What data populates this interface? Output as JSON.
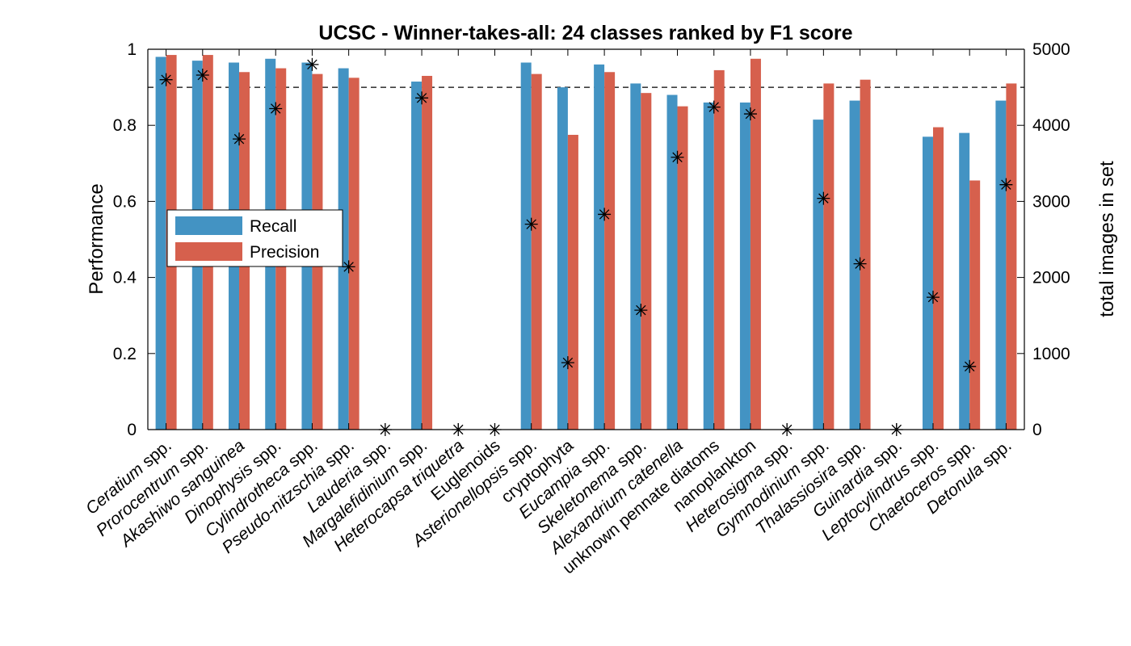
{
  "chart_data": {
    "type": "bar",
    "title": "UCSC - Winner-takes-all: 24 classes ranked by F1 score",
    "ylabel": "Performance",
    "y2label": "total images in set",
    "ylim": [
      0,
      1
    ],
    "y2lim": [
      0,
      5000
    ],
    "yticks": [
      "0",
      "0.2",
      "0.4",
      "0.6",
      "0.8",
      "1"
    ],
    "y2ticks": [
      "0",
      "1000",
      "2000",
      "3000",
      "4000",
      "5000"
    ],
    "reference_line": 0.9,
    "legend_position": "center-left",
    "categories": [
      {
        "label": "Ceratium spp.",
        "italic": "Ceratium",
        "rest": " spp."
      },
      {
        "label": "Prorocentrum spp.",
        "italic": "Prorocentrum",
        "rest": " spp."
      },
      {
        "label": "Akashiwo sanguinea",
        "italic": "Akashiwo sanguinea",
        "rest": ""
      },
      {
        "label": "Dinophysis spp.",
        "italic": "Dinophysis",
        "rest": " spp."
      },
      {
        "label": "Cylindrotheca spp.",
        "italic": "Cylindrotheca",
        "rest": " spp."
      },
      {
        "label": "Pseudo-nitzschia spp.",
        "italic": "Pseudo-nitzschia",
        "rest": " spp."
      },
      {
        "label": "Lauderia spp.",
        "italic": "Lauderia",
        "rest": " spp."
      },
      {
        "label": "Margalefidinium spp.",
        "italic": "Margalefidinium",
        "rest": " spp."
      },
      {
        "label": "Heterocapsa triquetra",
        "italic": "Heterocapsa triquetra",
        "rest": ""
      },
      {
        "label": "Euglenoids",
        "italic": "",
        "rest": "Euglenoids"
      },
      {
        "label": "Asterionellopsis spp.",
        "italic": "Asterionellopsis",
        "rest": " spp."
      },
      {
        "label": "cryptophyta",
        "italic": "",
        "rest": "cryptophyta"
      },
      {
        "label": "Eucampia spp.",
        "italic": "Eucampia",
        "rest": " spp."
      },
      {
        "label": "Skeletonema spp.",
        "italic": "Skeletonema",
        "rest": " spp."
      },
      {
        "label": "Alexandrium catenella",
        "italic": "Alexandrium catenella",
        "rest": ""
      },
      {
        "label": "unknown pennate diatoms",
        "italic": "",
        "rest": "unknown pennate diatoms"
      },
      {
        "label": "nanoplankton",
        "italic": "",
        "rest": "nanoplankton"
      },
      {
        "label": "Heterosigma spp.",
        "italic": "Heterosigma",
        "rest": " spp."
      },
      {
        "label": "Gymnodinium spp.",
        "italic": "Gymnodinium",
        "rest": " spp."
      },
      {
        "label": "Thalassiosira spp.",
        "italic": "Thalassiosira",
        "rest": " spp."
      },
      {
        "label": "Guinardia spp.",
        "italic": "Guinardia",
        "rest": " spp."
      },
      {
        "label": "Leptocylindrus spp.",
        "italic": "Leptocylindrus",
        "rest": " spp."
      },
      {
        "label": "Chaetoceros spp.",
        "italic": "Chaetoceros",
        "rest": " spp."
      },
      {
        "label": "Detonula spp.",
        "italic": "Detonula",
        "rest": " spp."
      }
    ],
    "series": [
      {
        "name": "Recall",
        "color": "#4393C3",
        "values": [
          0.98,
          0.97,
          0.965,
          0.975,
          0.965,
          0.95,
          0,
          0.915,
          0,
          0,
          0.965,
          0.9,
          0.96,
          0.91,
          0.88,
          0.86,
          0.86,
          0,
          0.815,
          0.865,
          0,
          0.77,
          0.78,
          0.865
        ]
      },
      {
        "name": "Precision",
        "color": "#D6604D",
        "values": [
          0.985,
          0.985,
          0.94,
          0.95,
          0.935,
          0.925,
          0,
          0.93,
          0,
          0,
          0.935,
          0.775,
          0.94,
          0.885,
          0.85,
          0.945,
          0.975,
          0,
          0.91,
          0.92,
          0,
          0.795,
          0.655,
          0.91
        ]
      }
    ],
    "total_images": [
      4600,
      4660,
      3820,
      4220,
      4800,
      2140,
      0,
      4360,
      0,
      0,
      2700,
      880,
      2830,
      1570,
      3580,
      4240,
      4150,
      0,
      3040,
      2180,
      0,
      1740,
      830,
      3220
    ]
  }
}
